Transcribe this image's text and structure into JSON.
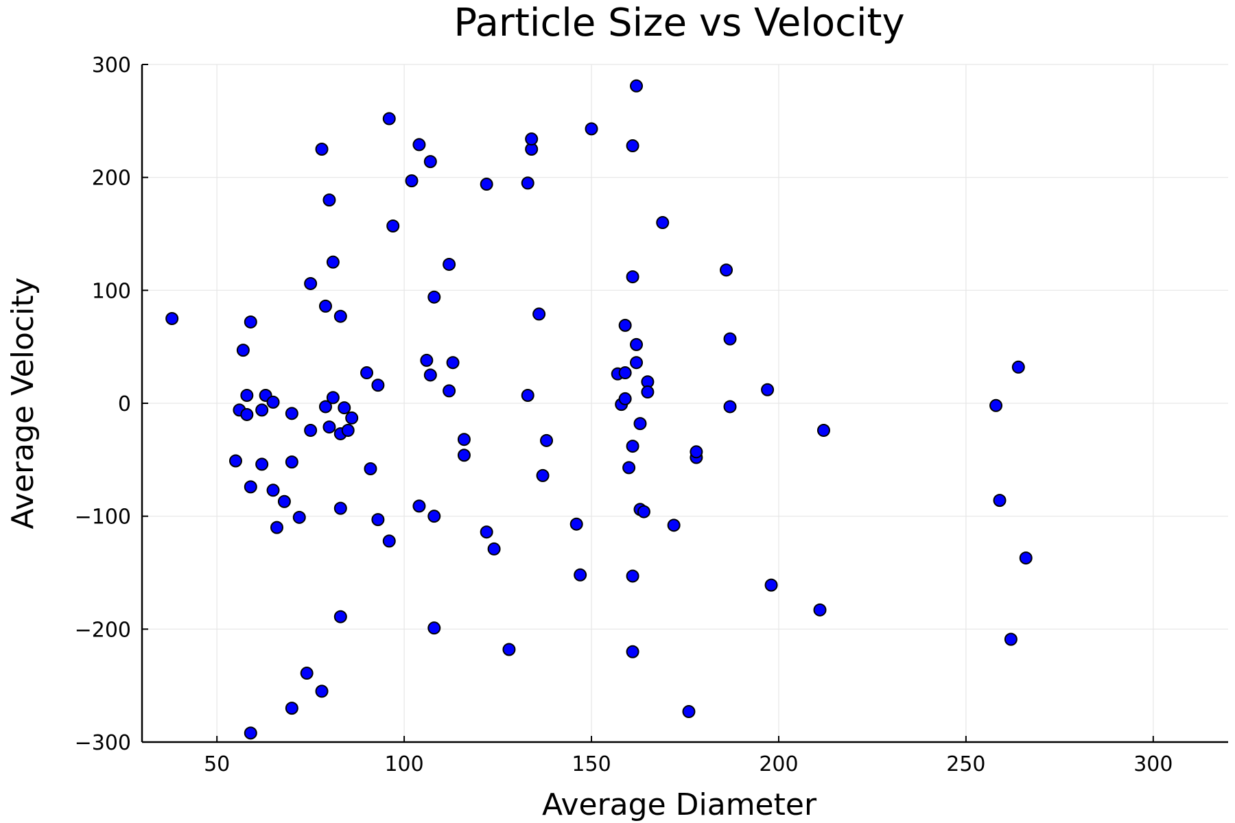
{
  "chart_data": {
    "type": "scatter",
    "title": "Particle Size vs Velocity",
    "xlabel": "Average Diameter",
    "ylabel": "Average Velocity",
    "xlim": [
      30,
      320
    ],
    "ylim": [
      -300,
      300
    ],
    "xticks": [
      50,
      100,
      150,
      200,
      250,
      300
    ],
    "yticks": [
      -300,
      -200,
      -100,
      0,
      100,
      200,
      300
    ],
    "xtick_labels": [
      "50",
      "100",
      "150",
      "200",
      "250",
      "300"
    ],
    "ytick_labels": [
      "−300",
      "−200",
      "−100",
      "0",
      "100",
      "200",
      "300"
    ],
    "grid": true,
    "legend": "none",
    "marker_color": "#0000ff",
    "marker_edge_color": "#000000",
    "points": [
      {
        "x": 38,
        "y": 75
      },
      {
        "x": 55,
        "y": -51
      },
      {
        "x": 56,
        "y": -6
      },
      {
        "x": 57,
        "y": 47
      },
      {
        "x": 58,
        "y": 7
      },
      {
        "x": 58,
        "y": -10
      },
      {
        "x": 59,
        "y": -292
      },
      {
        "x": 59,
        "y": 72
      },
      {
        "x": 59,
        "y": -74
      },
      {
        "x": 62,
        "y": -54
      },
      {
        "x": 62,
        "y": -6
      },
      {
        "x": 63,
        "y": 7
      },
      {
        "x": 65,
        "y": 1
      },
      {
        "x": 65,
        "y": -77
      },
      {
        "x": 66,
        "y": -110
      },
      {
        "x": 68,
        "y": -87
      },
      {
        "x": 70,
        "y": -270
      },
      {
        "x": 70,
        "y": -52
      },
      {
        "x": 70,
        "y": -9
      },
      {
        "x": 72,
        "y": -101
      },
      {
        "x": 74,
        "y": -239
      },
      {
        "x": 75,
        "y": 106
      },
      {
        "x": 75,
        "y": -24
      },
      {
        "x": 78,
        "y": 225
      },
      {
        "x": 78,
        "y": -255
      },
      {
        "x": 79,
        "y": -3
      },
      {
        "x": 79,
        "y": 86
      },
      {
        "x": 80,
        "y": 180
      },
      {
        "x": 80,
        "y": -21
      },
      {
        "x": 81,
        "y": 125
      },
      {
        "x": 81,
        "y": 5
      },
      {
        "x": 83,
        "y": 77
      },
      {
        "x": 83,
        "y": -93
      },
      {
        "x": 83,
        "y": -189
      },
      {
        "x": 83,
        "y": -27
      },
      {
        "x": 84,
        "y": -4
      },
      {
        "x": 85,
        "y": -24
      },
      {
        "x": 86,
        "y": -13
      },
      {
        "x": 90,
        "y": 27
      },
      {
        "x": 91,
        "y": -58
      },
      {
        "x": 93,
        "y": -103
      },
      {
        "x": 93,
        "y": 16
      },
      {
        "x": 96,
        "y": 252
      },
      {
        "x": 96,
        "y": -122
      },
      {
        "x": 97,
        "y": 157
      },
      {
        "x": 102,
        "y": 197
      },
      {
        "x": 104,
        "y": 229
      },
      {
        "x": 104,
        "y": -91
      },
      {
        "x": 106,
        "y": 38
      },
      {
        "x": 107,
        "y": 214
      },
      {
        "x": 107,
        "y": 25
      },
      {
        "x": 108,
        "y": 94
      },
      {
        "x": 108,
        "y": -100
      },
      {
        "x": 108,
        "y": -199
      },
      {
        "x": 112,
        "y": 11
      },
      {
        "x": 112,
        "y": 123
      },
      {
        "x": 113,
        "y": 36
      },
      {
        "x": 116,
        "y": -46
      },
      {
        "x": 116,
        "y": -32
      },
      {
        "x": 122,
        "y": 194
      },
      {
        "x": 122,
        "y": -114
      },
      {
        "x": 124,
        "y": -129
      },
      {
        "x": 128,
        "y": -218
      },
      {
        "x": 133,
        "y": 7
      },
      {
        "x": 133,
        "y": 195
      },
      {
        "x": 134,
        "y": 225
      },
      {
        "x": 134,
        "y": 234
      },
      {
        "x": 136,
        "y": 79
      },
      {
        "x": 137,
        "y": -64
      },
      {
        "x": 138,
        "y": -33
      },
      {
        "x": 146,
        "y": -107
      },
      {
        "x": 147,
        "y": -152
      },
      {
        "x": 150,
        "y": 243
      },
      {
        "x": 157,
        "y": 26
      },
      {
        "x": 158,
        "y": -1
      },
      {
        "x": 159,
        "y": 69
      },
      {
        "x": 159,
        "y": 27
      },
      {
        "x": 159,
        "y": 4
      },
      {
        "x": 160,
        "y": -57
      },
      {
        "x": 161,
        "y": 228
      },
      {
        "x": 161,
        "y": 112
      },
      {
        "x": 161,
        "y": -38
      },
      {
        "x": 161,
        "y": -153
      },
      {
        "x": 161,
        "y": -220
      },
      {
        "x": 162,
        "y": 281
      },
      {
        "x": 162,
        "y": 36
      },
      {
        "x": 162,
        "y": 52
      },
      {
        "x": 163,
        "y": -18
      },
      {
        "x": 163,
        "y": -94
      },
      {
        "x": 164,
        "y": -96
      },
      {
        "x": 165,
        "y": 19
      },
      {
        "x": 165,
        "y": 10
      },
      {
        "x": 169,
        "y": 160
      },
      {
        "x": 172,
        "y": -108
      },
      {
        "x": 176,
        "y": -273
      },
      {
        "x": 178,
        "y": -48
      },
      {
        "x": 178,
        "y": -43
      },
      {
        "x": 186,
        "y": 118
      },
      {
        "x": 187,
        "y": 57
      },
      {
        "x": 187,
        "y": -3
      },
      {
        "x": 197,
        "y": 12
      },
      {
        "x": 198,
        "y": -161
      },
      {
        "x": 211,
        "y": -183
      },
      {
        "x": 212,
        "y": -24
      },
      {
        "x": 258,
        "y": -2
      },
      {
        "x": 259,
        "y": -86
      },
      {
        "x": 262,
        "y": -209
      },
      {
        "x": 264,
        "y": 32
      },
      {
        "x": 266,
        "y": -137
      }
    ]
  }
}
